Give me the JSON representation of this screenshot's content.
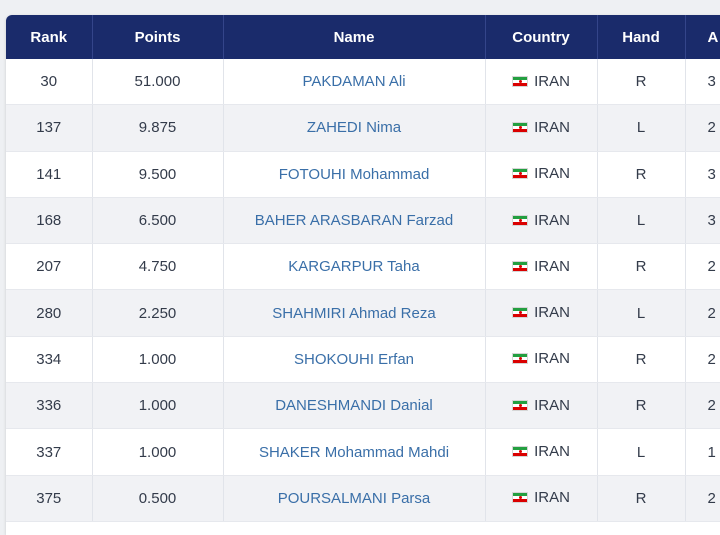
{
  "colors": {
    "header_bg": "#1a2b6b",
    "name_link": "#3a6fa8",
    "flag_green": "#239f40",
    "flag_red": "#da0000"
  },
  "table": {
    "columns": [
      "Rank",
      "Points",
      "Name",
      "Country",
      "Hand",
      "A"
    ],
    "rows": [
      {
        "rank": "30",
        "points": "51.000",
        "name": "PAKDAMAN Ali",
        "country": "IRAN",
        "flag_icon": "iran-flag-icon",
        "hand": "R",
        "age": "3"
      },
      {
        "rank": "137",
        "points": "9.875",
        "name": "ZAHEDI Nima",
        "country": "IRAN",
        "flag_icon": "iran-flag-icon",
        "hand": "L",
        "age": "2"
      },
      {
        "rank": "141",
        "points": "9.500",
        "name": "FOTOUHI Mohammad",
        "country": "IRAN",
        "flag_icon": "iran-flag-icon",
        "hand": "R",
        "age": "3"
      },
      {
        "rank": "168",
        "points": "6.500",
        "name": "BAHER ARASBARAN Farzad",
        "country": "IRAN",
        "flag_icon": "iran-flag-icon",
        "hand": "L",
        "age": "3"
      },
      {
        "rank": "207",
        "points": "4.750",
        "name": "KARGARPUR Taha",
        "country": "IRAN",
        "flag_icon": "iran-flag-icon",
        "hand": "R",
        "age": "2"
      },
      {
        "rank": "280",
        "points": "2.250",
        "name": "SHAHMIRI Ahmad Reza",
        "country": "IRAN",
        "flag_icon": "iran-flag-icon",
        "hand": "L",
        "age": "2"
      },
      {
        "rank": "334",
        "points": "1.000",
        "name": "SHOKOUHI Erfan",
        "country": "IRAN",
        "flag_icon": "iran-flag-icon",
        "hand": "R",
        "age": "2"
      },
      {
        "rank": "336",
        "points": "1.000",
        "name": "DANESHMANDI Danial",
        "country": "IRAN",
        "flag_icon": "iran-flag-icon",
        "hand": "R",
        "age": "2"
      },
      {
        "rank": "337",
        "points": "1.000",
        "name": "SHAKER Mohammad Mahdi",
        "country": "IRAN",
        "flag_icon": "iran-flag-icon",
        "hand": "L",
        "age": "1"
      },
      {
        "rank": "375",
        "points": "0.500",
        "name": "POURSALMANI Parsa",
        "country": "IRAN",
        "flag_icon": "iran-flag-icon",
        "hand": "R",
        "age": "2"
      }
    ]
  }
}
